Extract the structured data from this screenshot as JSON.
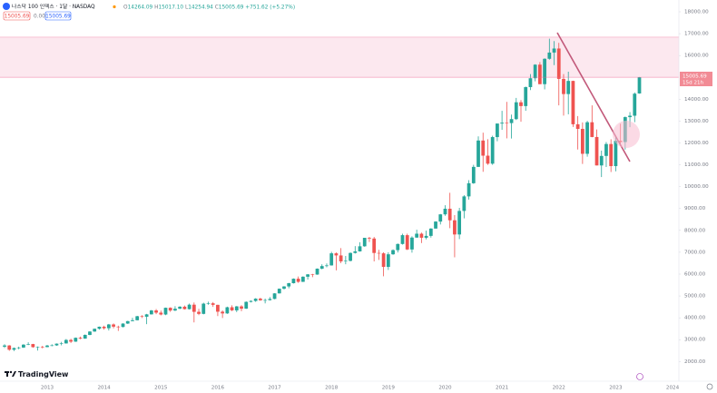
{
  "chart_data": {
    "type": "candlestick",
    "title": "나스닥 100 인덱스 · 1달 · NASDAQ",
    "header_labels": [
      "O",
      "H",
      "L",
      "C"
    ],
    "header_values": [
      "14264.09",
      "15017.10",
      "14254.94",
      "15005.69"
    ],
    "change": "+751.62 (+5.27%)",
    "price_label": "15005.69",
    "spread": "0.00",
    "countdown": "15d 21h",
    "brand": "TradingView",
    "up_color": "#26a69a",
    "down_color": "#ef5350",
    "zone": [
      14990,
      16840
    ],
    "zone_color": "#fce4ec",
    "categories": [
      null,
      null,
      null,
      null,
      null,
      null,
      null,
      null,
      null,
      "2013",
      null,
      null,
      null,
      null,
      null,
      null,
      null,
      null,
      null,
      null,
      null,
      "2014",
      null,
      null,
      null,
      null,
      null,
      null,
      null,
      null,
      null,
      null,
      null,
      "2015",
      null,
      null,
      null,
      null,
      null,
      null,
      null,
      null,
      null,
      null,
      null,
      "2016",
      null,
      null,
      null,
      null,
      null,
      null,
      null,
      null,
      null,
      null,
      null,
      "2017",
      null,
      null,
      null,
      null,
      null,
      null,
      null,
      null,
      null,
      null,
      null,
      "2018",
      null,
      null,
      null,
      null,
      null,
      null,
      null,
      null,
      null,
      null,
      null,
      "2019",
      null,
      null,
      null,
      null,
      null,
      null,
      null,
      null,
      null,
      null,
      null,
      "2020",
      null,
      null,
      null,
      null,
      null,
      null,
      null,
      null,
      null,
      null,
      null,
      "2021",
      null,
      null,
      null,
      null,
      null,
      null,
      null,
      null,
      null,
      null,
      null,
      "2022",
      null,
      null,
      null,
      null,
      null,
      null,
      null,
      null,
      null,
      null,
      null,
      "2023",
      null,
      null,
      null,
      null,
      null,
      null,
      null,
      null,
      null,
      null,
      null,
      "2024"
    ],
    "open": [
      2680,
      2735,
      2540,
      2616,
      2640,
      2772,
      2799,
      2659,
      2677,
      2660,
      2731,
      2739,
      2818,
      2828,
      2987,
      2910,
      3086,
      3049,
      3218,
      3372,
      3499,
      3592,
      3524,
      3696,
      3596,
      3582,
      3736,
      3849,
      3889,
      4073,
      4050,
      4158,
      4337,
      4236,
      4151,
      4459,
      4334,
      4415,
      4509,
      4397,
      4601,
      4274,
      4181,
      4648,
      4664,
      4593,
      4280,
      4201,
      4483,
      4341,
      4523,
      4418,
      4730,
      4771,
      4875,
      4801,
      4810,
      4864,
      5118,
      5330,
      5436,
      5584,
      5788,
      5647,
      5880,
      5988,
      5979,
      6248,
      6367,
      6397,
      6950,
      6854,
      6582,
      6606,
      6967,
      7040,
      7272,
      7660,
      7627,
      6967,
      6949,
      6330,
      6906,
      7097,
      7378,
      7781,
      7127,
      7671,
      7848,
      7663,
      7749,
      8083,
      8403,
      8733,
      8991,
      8462,
      7813,
      8890,
      9555,
      10157,
      10905,
      12111,
      11418,
      11052,
      12268,
      12888,
      12925,
      12909,
      13091,
      13861,
      13687,
      14555,
      14960,
      15582,
      14690,
      15850,
      16135,
      16320,
      14930,
      14237,
      14838,
      12855,
      12643,
      11504,
      12947,
      12272,
      10971,
      11406,
      11951,
      10940,
      12102,
      12042,
      13181,
      13246,
      14264.09,
      null,
      null,
      null,
      null,
      null,
      null,
      null
    ],
    "high": [
      2790,
      2750,
      2640,
      2680,
      2790,
      2880,
      2810,
      2690,
      2720,
      2760,
      2790,
      2830,
      2900,
      3030,
      3040,
      3100,
      3140,
      3240,
      3390,
      3510,
      3600,
      3640,
      3720,
      3740,
      3640,
      3750,
      3860,
      4000,
      4090,
      4120,
      4180,
      4360,
      4400,
      4330,
      4470,
      4480,
      4530,
      4530,
      4560,
      4650,
      4700,
      4410,
      4690,
      4740,
      4720,
      4600,
      4340,
      4510,
      4570,
      4540,
      4580,
      4750,
      4800,
      4900,
      4920,
      4880,
      4950,
      5130,
      5340,
      5450,
      5600,
      5800,
      5890,
      5900,
      6000,
      6010,
      6260,
      6450,
      6490,
      7020,
      6990,
      7190,
      6830,
      6990,
      7280,
      7460,
      7660,
      7700,
      7700,
      7110,
      7000,
      7000,
      7130,
      7400,
      7850,
      7850,
      7730,
      8030,
      7900,
      7990,
      8100,
      8420,
      8750,
      9150,
      9720,
      8700,
      9030,
      9610,
      10300,
      11000,
      12300,
      12470,
      12170,
      12330,
      12890,
      13470,
      13880,
      13300,
      14060,
      13960,
      14580,
      15150,
      15600,
      15700,
      15870,
      16770,
      16660,
      16580,
      15150,
      15260,
      14850,
      13230,
      12940,
      13010,
      13720,
      12620,
      11650,
      12040,
      12170,
      12270,
      12880,
      13210,
      13410,
      14310,
      15017.1,
      null,
      null,
      null,
      null,
      null,
      null,
      null
    ],
    "low": [
      2620,
      2490,
      2480,
      2560,
      2620,
      2750,
      2630,
      2500,
      2600,
      2650,
      2700,
      2720,
      2740,
      2820,
      2850,
      2900,
      3020,
      3040,
      3200,
      3360,
      3460,
      3460,
      3420,
      3520,
      3400,
      3560,
      3720,
      3840,
      3880,
      3990,
      3710,
      4150,
      4170,
      4110,
      4120,
      4270,
      4310,
      4400,
      4380,
      4380,
      3790,
      4120,
      4160,
      4600,
      4500,
      4080,
      3990,
      4180,
      4310,
      4260,
      4300,
      4410,
      4700,
      4730,
      4780,
      4660,
      4790,
      4850,
      5110,
      5300,
      5350,
      5570,
      5600,
      5640,
      5750,
      5860,
      5970,
      6220,
      6310,
      6390,
      6170,
      6500,
      6450,
      6580,
      6940,
      7030,
      7250,
      7470,
      6580,
      6650,
      5900,
      6190,
      6880,
      6990,
      7350,
      7100,
      6980,
      7660,
      7420,
      7590,
      7670,
      8080,
      8270,
      8670,
      8100,
      6770,
      7600,
      8550,
      9410,
      10130,
      10900,
      10680,
      11000,
      11000,
      12080,
      12600,
      12210,
      12200,
      13050,
      12970,
      13470,
      14420,
      14820,
      14690,
      14450,
      15810,
      15560,
      13720,
      13250,
      13310,
      12730,
      11700,
      11040,
      11370,
      12260,
      10970,
      10440,
      10900,
      10670,
      10700,
      11850,
      11700,
      12720,
      12950,
      14254.94,
      null,
      null,
      null,
      null,
      null,
      null,
      null
    ],
    "close": [
      2735,
      2540,
      2616,
      2640,
      2772,
      2799,
      2659,
      2677,
      2660,
      2731,
      2739,
      2818,
      2828,
      2987,
      2910,
      3086,
      3049,
      3218,
      3372,
      3499,
      3592,
      3524,
      3696,
      3596,
      3582,
      3736,
      3849,
      3889,
      4073,
      4050,
      4158,
      4337,
      4236,
      4151,
      4459,
      4334,
      4415,
      4509,
      4397,
      4601,
      4274,
      4181,
      4648,
      4664,
      4593,
      4280,
      4201,
      4483,
      4341,
      4523,
      4418,
      4730,
      4771,
      4875,
      4801,
      4810,
      4864,
      5118,
      5330,
      5436,
      5584,
      5788,
      5647,
      5880,
      5988,
      5979,
      6248,
      6367,
      6397,
      6950,
      6854,
      6582,
      6606,
      6967,
      7040,
      7272,
      7660,
      7627,
      6967,
      6949,
      6330,
      6906,
      7097,
      7378,
      7781,
      7127,
      7671,
      7848,
      7663,
      7749,
      8083,
      8403,
      8733,
      8991,
      8462,
      7813,
      8890,
      9555,
      10157,
      10905,
      12111,
      11418,
      11052,
      12268,
      12888,
      12925,
      12909,
      13091,
      13861,
      13687,
      14555,
      14960,
      15582,
      14690,
      15850,
      16135,
      16320,
      14930,
      14237,
      14838,
      12855,
      12643,
      11504,
      12947,
      12272,
      10971,
      11406,
      11951,
      10940,
      12102,
      12042,
      13181,
      13246,
      14254,
      15005.69,
      null,
      null,
      null,
      null,
      null,
      null,
      null
    ],
    "ylim": [
      1100,
      18540
    ],
    "yticks": [
      {
        "value": 2000,
        "label": "2000.00"
      },
      {
        "value": 3000,
        "label": "3000.00"
      },
      {
        "value": 4000,
        "label": "4000.00"
      },
      {
        "value": 5000,
        "label": "5000.00"
      },
      {
        "value": 6000,
        "label": "6000.00"
      },
      {
        "value": 7000,
        "label": "7000.00"
      },
      {
        "value": 8000,
        "label": "8000.00"
      },
      {
        "value": 9000,
        "label": "9000.00"
      },
      {
        "value": 10000,
        "label": "10000.00"
      },
      {
        "value": 11000,
        "label": "11000.00"
      },
      {
        "value": 12000,
        "label": "12000.00"
      },
      {
        "value": 13000,
        "label": "13000.00"
      },
      {
        "value": 14000,
        "label": "14000.00"
      },
      {
        "value": 16000,
        "label": "16000.00"
      },
      {
        "value": 17000,
        "label": "17000.00"
      },
      {
        "value": 18000,
        "label": "18000.00"
      }
    ]
  }
}
